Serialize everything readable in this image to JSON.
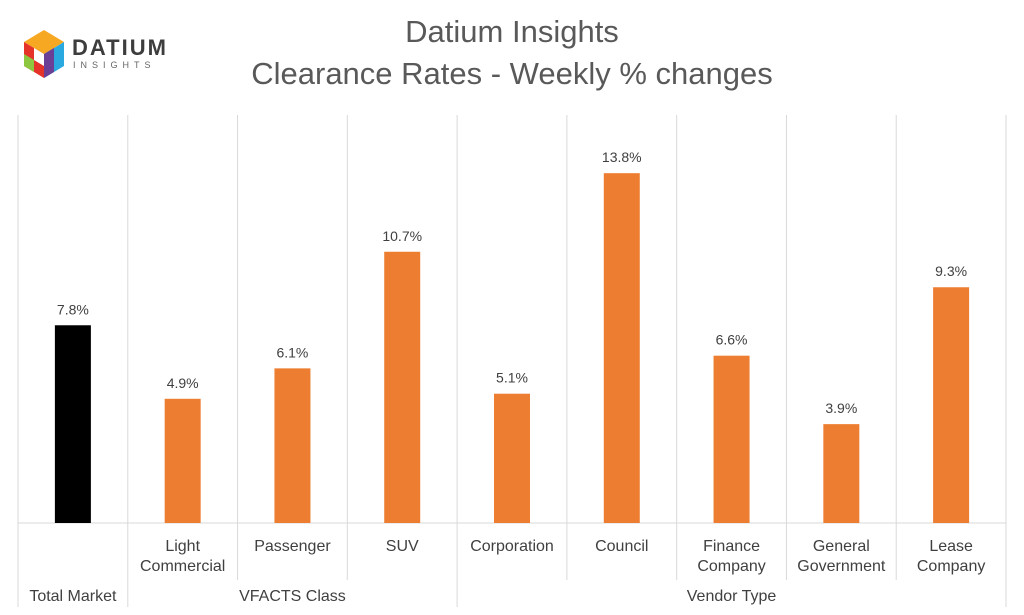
{
  "logo": {
    "name": "DATIUM",
    "tagline": "INSIGHTS"
  },
  "chart_data": {
    "type": "bar",
    "title": "Datium Insights",
    "subtitle": "Clearance Rates - Weekly % changes",
    "categories": [
      {
        "label": [
          "Total Market"
        ],
        "group": "",
        "value": 7.8,
        "data_label": "7.8%",
        "color": "#000000"
      },
      {
        "label": [
          "Light",
          "Commercial"
        ],
        "group": "VFACTS Class",
        "value": 4.9,
        "data_label": "4.9%",
        "color": "#ED7D31"
      },
      {
        "label": [
          "Passenger"
        ],
        "group": "VFACTS Class",
        "value": 6.1,
        "data_label": "6.1%",
        "color": "#ED7D31"
      },
      {
        "label": [
          "SUV"
        ],
        "group": "VFACTS Class",
        "value": 10.7,
        "data_label": "10.7%",
        "color": "#ED7D31"
      },
      {
        "label": [
          "Corporation"
        ],
        "group": "Vendor Type",
        "value": 5.1,
        "data_label": "5.1%",
        "color": "#ED7D31"
      },
      {
        "label": [
          "Council"
        ],
        "group": "Vendor Type",
        "value": 13.8,
        "data_label": "13.8%",
        "color": "#ED7D31"
      },
      {
        "label": [
          "Finance",
          "Company"
        ],
        "group": "Vendor Type",
        "value": 6.6,
        "data_label": "6.6%",
        "color": "#ED7D31"
      },
      {
        "label": [
          "General",
          "Government"
        ],
        "group": "Vendor Type",
        "value": 3.9,
        "data_label": "3.9%",
        "color": "#ED7D31"
      },
      {
        "label": [
          "Lease",
          "Company"
        ],
        "group": "Vendor Type",
        "value": 9.3,
        "data_label": "9.3%",
        "color": "#ED7D31"
      }
    ],
    "groups": [
      {
        "label": "Total Market",
        "members": [
          "Total Market"
        ]
      },
      {
        "label": "VFACTS Class",
        "members": [
          "Light Commercial",
          "Passenger",
          "SUV"
        ]
      },
      {
        "label": "Vendor Type",
        "members": [
          "Corporation",
          "Council",
          "Finance Company",
          "General Government",
          "Lease Company"
        ]
      }
    ],
    "ylim": [
      0,
      15.5
    ],
    "grid": false,
    "legend": "none",
    "colors": {
      "total": "#000000",
      "bars": "#ED7D31",
      "dividers": "#D9D9D9",
      "text": "#404040"
    }
  }
}
